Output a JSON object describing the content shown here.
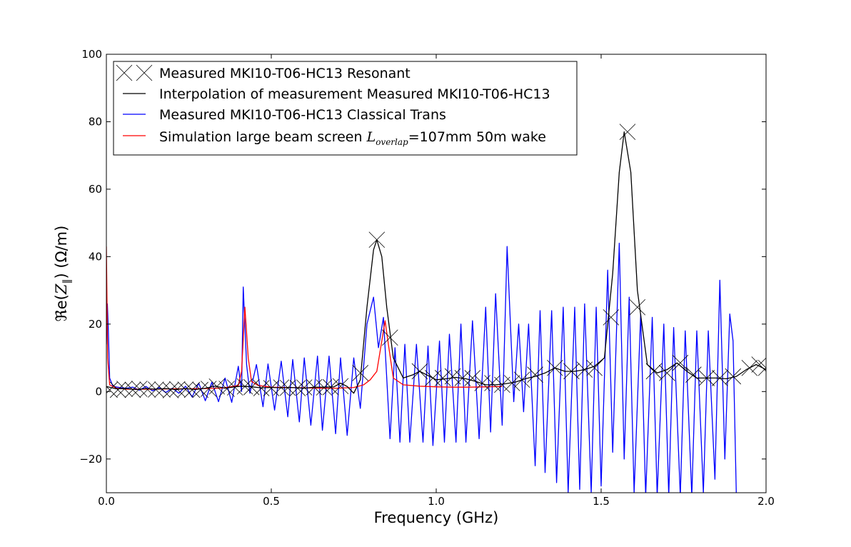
{
  "chart_data": {
    "type": "line",
    "title": "",
    "xlabel": "Frequency (GHz)",
    "ylabel": {
      "prefix": "ℜe(",
      "symbol": "Z",
      "subscript": "∥",
      "suffix": ")  (Ω/m)"
    },
    "xlim": [
      0.0,
      2.0
    ],
    "ylim": [
      -30,
      100
    ],
    "x_ticks": [
      0.0,
      0.5,
      1.0,
      1.5,
      2.0
    ],
    "x_tick_labels": [
      "0.0",
      "0.5",
      "1.0",
      "1.5",
      "2.0"
    ],
    "y_ticks": [
      -20,
      0,
      20,
      40,
      60,
      80,
      100
    ],
    "y_tick_labels": [
      "−20",
      "0",
      "20",
      "40",
      "60",
      "80",
      "100"
    ],
    "grid": false,
    "legend": {
      "placement": "top-left",
      "entries": [
        {
          "text": "Measured MKI10-T06-HC13 Resonant",
          "marker": "x",
          "color": "#000000"
        },
        {
          "text": "Interpolation of measurement Measured MKI10-T06-HC13",
          "marker": "line",
          "color": "#000000"
        },
        {
          "text": "Measured MKI10-T06-HC13 Classical Trans",
          "marker": "line",
          "color": "#0000ff"
        },
        {
          "text_before": "Simulation large beam screen ",
          "math_symbol": "L",
          "math_subscript": "overlap",
          "text_after": "=107mm 50m wake",
          "marker": "line",
          "color": "#ff0000"
        }
      ]
    },
    "series": [
      {
        "name": "Measured MKI10-T06-HC13 Resonant",
        "style": "markers",
        "marker": "x",
        "color": "#000000",
        "points": [
          [
            0.01,
            0.5
          ],
          [
            0.035,
            0.5
          ],
          [
            0.055,
            0.8
          ],
          [
            0.08,
            0.5
          ],
          [
            0.1,
            0.8
          ],
          [
            0.125,
            0.6
          ],
          [
            0.15,
            0.6
          ],
          [
            0.17,
            0.6
          ],
          [
            0.195,
            0.4
          ],
          [
            0.215,
            0.7
          ],
          [
            0.24,
            0.6
          ],
          [
            0.26,
            0.5
          ],
          [
            0.285,
            0.5
          ],
          [
            0.31,
            0.8
          ],
          [
            0.335,
            1.5
          ],
          [
            0.365,
            0.8
          ],
          [
            0.39,
            1.2
          ],
          [
            0.42,
            1.5
          ],
          [
            0.44,
            1.3
          ],
          [
            0.47,
            1.0
          ],
          [
            0.5,
            1.0
          ],
          [
            0.53,
            1.2
          ],
          [
            0.55,
            1.1
          ],
          [
            0.58,
            1.0
          ],
          [
            0.6,
            1.2
          ],
          [
            0.63,
            1.3
          ],
          [
            0.66,
            1.2
          ],
          [
            0.68,
            1.3
          ],
          [
            0.71,
            1.6
          ],
          [
            0.77,
            5.5
          ],
          [
            0.82,
            45.0
          ],
          [
            0.86,
            16.0
          ],
          [
            0.95,
            6.0
          ],
          [
            0.99,
            4.0
          ],
          [
            1.02,
            4.0
          ],
          [
            1.05,
            4.5
          ],
          [
            1.08,
            4.0
          ],
          [
            1.11,
            4.0
          ],
          [
            1.14,
            2.5
          ],
          [
            1.17,
            2.5
          ],
          [
            1.2,
            2.0
          ],
          [
            1.23,
            2.5
          ],
          [
            1.26,
            3.5
          ],
          [
            1.3,
            5.0
          ],
          [
            1.36,
            7.0
          ],
          [
            1.41,
            6.0
          ],
          [
            1.45,
            6.5
          ],
          [
            1.48,
            7.0
          ],
          [
            1.53,
            22.0
          ],
          [
            1.58,
            77.0
          ],
          [
            1.61,
            25.0
          ],
          [
            1.66,
            6.0
          ],
          [
            1.7,
            5.5
          ],
          [
            1.74,
            8.5
          ],
          [
            1.78,
            5.0
          ],
          [
            1.82,
            4.0
          ],
          [
            1.86,
            4.0
          ],
          [
            1.9,
            4.5
          ],
          [
            1.95,
            7.0
          ],
          [
            1.98,
            8.0
          ],
          [
            2.0,
            7.0
          ]
        ]
      },
      {
        "name": "Interpolation of measurement Measured MKI10-T06-HC13",
        "style": "line",
        "color": "#000000",
        "points": [
          [
            0.0,
            1.5
          ],
          [
            0.03,
            0.8
          ],
          [
            0.06,
            0.9
          ],
          [
            0.09,
            0.6
          ],
          [
            0.12,
            0.9
          ],
          [
            0.15,
            0.7
          ],
          [
            0.18,
            0.9
          ],
          [
            0.21,
            0.6
          ],
          [
            0.24,
            0.9
          ],
          [
            0.27,
            0.6
          ],
          [
            0.3,
            1.0
          ],
          [
            0.33,
            1.6
          ],
          [
            0.36,
            1.0
          ],
          [
            0.39,
            1.4
          ],
          [
            0.41,
            1.6
          ],
          [
            0.44,
            1.4
          ],
          [
            0.47,
            1.1
          ],
          [
            0.5,
            1.2
          ],
          [
            0.53,
            1.1
          ],
          [
            0.56,
            1.2
          ],
          [
            0.6,
            1.0
          ],
          [
            0.63,
            1.3
          ],
          [
            0.66,
            1.3
          ],
          [
            0.69,
            1.4
          ],
          [
            0.71,
            2.5
          ],
          [
            0.73,
            1.5
          ],
          [
            0.75,
            -0.5
          ],
          [
            0.77,
            3.5
          ],
          [
            0.79,
            25.0
          ],
          [
            0.81,
            42.0
          ],
          [
            0.82,
            45.0
          ],
          [
            0.835,
            40.0
          ],
          [
            0.85,
            25.0
          ],
          [
            0.87,
            10.0
          ],
          [
            0.9,
            4.0
          ],
          [
            0.93,
            5.0
          ],
          [
            0.95,
            6.0
          ],
          [
            0.98,
            4.5
          ],
          [
            1.0,
            3.5
          ],
          [
            1.03,
            3.8
          ],
          [
            1.06,
            4.2
          ],
          [
            1.09,
            3.8
          ],
          [
            1.12,
            3.0
          ],
          [
            1.15,
            2.0
          ],
          [
            1.18,
            2.0
          ],
          [
            1.21,
            2.3
          ],
          [
            1.24,
            2.8
          ],
          [
            1.27,
            3.8
          ],
          [
            1.3,
            4.5
          ],
          [
            1.33,
            5.5
          ],
          [
            1.36,
            7.0
          ],
          [
            1.39,
            6.0
          ],
          [
            1.42,
            6.0
          ],
          [
            1.45,
            6.5
          ],
          [
            1.48,
            7.5
          ],
          [
            1.51,
            10.0
          ],
          [
            1.535,
            35.0
          ],
          [
            1.555,
            65.0
          ],
          [
            1.57,
            77.0
          ],
          [
            1.59,
            65.0
          ],
          [
            1.61,
            30.0
          ],
          [
            1.64,
            8.0
          ],
          [
            1.67,
            5.5
          ],
          [
            1.7,
            6.5
          ],
          [
            1.73,
            8.5
          ],
          [
            1.76,
            6.0
          ],
          [
            1.79,
            4.0
          ],
          [
            1.82,
            4.0
          ],
          [
            1.85,
            4.0
          ],
          [
            1.88,
            3.8
          ],
          [
            1.91,
            4.5
          ],
          [
            1.94,
            6.5
          ],
          [
            1.97,
            8.0
          ],
          [
            2.0,
            6.5
          ]
        ]
      },
      {
        "name": "Measured MKI10-T06-HC13 Classical Trans",
        "style": "line",
        "color": "#0000ff",
        "points": [
          [
            0.0,
            14.0
          ],
          [
            0.003,
            26.0
          ],
          [
            0.006,
            18.0
          ],
          [
            0.01,
            4.0
          ],
          [
            0.02,
            1.5
          ],
          [
            0.04,
            1.2
          ],
          [
            0.06,
            1.0
          ],
          [
            0.08,
            1.3
          ],
          [
            0.1,
            0.4
          ],
          [
            0.12,
            1.5
          ],
          [
            0.14,
            0.2
          ],
          [
            0.16,
            1.2
          ],
          [
            0.18,
            -0.3
          ],
          [
            0.2,
            1.0
          ],
          [
            0.22,
            -0.5
          ],
          [
            0.24,
            1.6
          ],
          [
            0.26,
            -1.6
          ],
          [
            0.28,
            2.5
          ],
          [
            0.3,
            -2.7
          ],
          [
            0.32,
            2.8
          ],
          [
            0.34,
            -3.0
          ],
          [
            0.36,
            4.0
          ],
          [
            0.38,
            -3.2
          ],
          [
            0.4,
            7.5
          ],
          [
            0.41,
            0.0
          ],
          [
            0.415,
            31.0
          ],
          [
            0.425,
            8.0
          ],
          [
            0.435,
            -0.5
          ],
          [
            0.455,
            8.0
          ],
          [
            0.475,
            -4.5
          ],
          [
            0.49,
            8.2
          ],
          [
            0.51,
            -5.5
          ],
          [
            0.53,
            9.0
          ],
          [
            0.55,
            -7.5
          ],
          [
            0.565,
            9.5
          ],
          [
            0.585,
            -9.0
          ],
          [
            0.6,
            10.0
          ],
          [
            0.62,
            -10.0
          ],
          [
            0.64,
            10.5
          ],
          [
            0.655,
            -11.5
          ],
          [
            0.675,
            10.5
          ],
          [
            0.695,
            -12.5
          ],
          [
            0.71,
            10.0
          ],
          [
            0.73,
            -13.0
          ],
          [
            0.75,
            10.0
          ],
          [
            0.77,
            -5.0
          ],
          [
            0.79,
            20.0
          ],
          [
            0.81,
            28.0
          ],
          [
            0.825,
            13.0
          ],
          [
            0.84,
            22.0
          ],
          [
            0.86,
            -14.0
          ],
          [
            0.875,
            13.0
          ],
          [
            0.89,
            -15.0
          ],
          [
            0.905,
            14.0
          ],
          [
            0.92,
            -15.0
          ],
          [
            0.94,
            14.0
          ],
          [
            0.96,
            -15.0
          ],
          [
            0.975,
            13.5
          ],
          [
            0.99,
            -16.0
          ],
          [
            1.01,
            15.0
          ],
          [
            1.025,
            -15.0
          ],
          [
            1.04,
            17.0
          ],
          [
            1.06,
            -15.0
          ],
          [
            1.075,
            20.0
          ],
          [
            1.09,
            -15.0
          ],
          [
            1.11,
            21.0
          ],
          [
            1.13,
            -14.0
          ],
          [
            1.15,
            25.0
          ],
          [
            1.165,
            -12.0
          ],
          [
            1.18,
            29.0
          ],
          [
            1.2,
            -10.0
          ],
          [
            1.215,
            43.0
          ],
          [
            1.235,
            -3.0
          ],
          [
            1.25,
            20.0
          ],
          [
            1.265,
            -6.0
          ],
          [
            1.28,
            20.0
          ],
          [
            1.3,
            -22.0
          ],
          [
            1.315,
            24.0
          ],
          [
            1.33,
            -24.0
          ],
          [
            1.35,
            24.0
          ],
          [
            1.365,
            -27.0
          ],
          [
            1.385,
            25.0
          ],
          [
            1.4,
            -30.0
          ],
          [
            1.42,
            25.0
          ],
          [
            1.435,
            -29.0
          ],
          [
            1.45,
            26.0
          ],
          [
            1.47,
            -30.0
          ],
          [
            1.485,
            25.0
          ],
          [
            1.5,
            -28.0
          ],
          [
            1.52,
            36.0
          ],
          [
            1.535,
            -18.0
          ],
          [
            1.555,
            44.0
          ],
          [
            1.57,
            -20.0
          ],
          [
            1.585,
            28.0
          ],
          [
            1.6,
            -30.0
          ],
          [
            1.62,
            23.0
          ],
          [
            1.635,
            -31.0
          ],
          [
            1.655,
            22.0
          ],
          [
            1.67,
            -31.0
          ],
          [
            1.69,
            20.0
          ],
          [
            1.705,
            -31.0
          ],
          [
            1.72,
            19.0
          ],
          [
            1.74,
            -31.0
          ],
          [
            1.755,
            18.0
          ],
          [
            1.775,
            -31.0
          ],
          [
            1.79,
            18.0
          ],
          [
            1.81,
            -30.0
          ],
          [
            1.825,
            18.0
          ],
          [
            1.845,
            -26.0
          ],
          [
            1.86,
            33.0
          ],
          [
            1.875,
            -20.0
          ],
          [
            1.89,
            23.0
          ],
          [
            1.9,
            15.0
          ],
          [
            1.91,
            -31.0
          ]
        ]
      },
      {
        "name": "Simulation large beam screen Loverlap=107mm 50m wake",
        "style": "line",
        "color": "#ff0000",
        "points": [
          [
            0.0,
            43.0
          ],
          [
            0.004,
            10.0
          ],
          [
            0.01,
            2.0
          ],
          [
            0.03,
            1.0
          ],
          [
            0.06,
            0.7
          ],
          [
            0.1,
            0.7
          ],
          [
            0.15,
            0.7
          ],
          [
            0.2,
            0.8
          ],
          [
            0.25,
            0.8
          ],
          [
            0.3,
            0.9
          ],
          [
            0.35,
            1.0
          ],
          [
            0.4,
            1.8
          ],
          [
            0.41,
            6.0
          ],
          [
            0.42,
            25.0
          ],
          [
            0.43,
            10.0
          ],
          [
            0.44,
            3.0
          ],
          [
            0.46,
            1.8
          ],
          [
            0.5,
            1.3
          ],
          [
            0.55,
            1.2
          ],
          [
            0.6,
            1.1
          ],
          [
            0.65,
            1.0
          ],
          [
            0.7,
            1.0
          ],
          [
            0.75,
            1.2
          ],
          [
            0.78,
            2.0
          ],
          [
            0.8,
            3.5
          ],
          [
            0.82,
            6.0
          ],
          [
            0.835,
            15.0
          ],
          [
            0.845,
            21.0
          ],
          [
            0.855,
            14.0
          ],
          [
            0.87,
            4.0
          ],
          [
            0.9,
            2.0
          ],
          [
            0.95,
            1.6
          ],
          [
            1.0,
            1.4
          ],
          [
            1.05,
            1.3
          ],
          [
            1.1,
            1.3
          ],
          [
            1.15,
            1.4
          ],
          [
            1.2,
            1.5
          ]
        ]
      }
    ]
  }
}
